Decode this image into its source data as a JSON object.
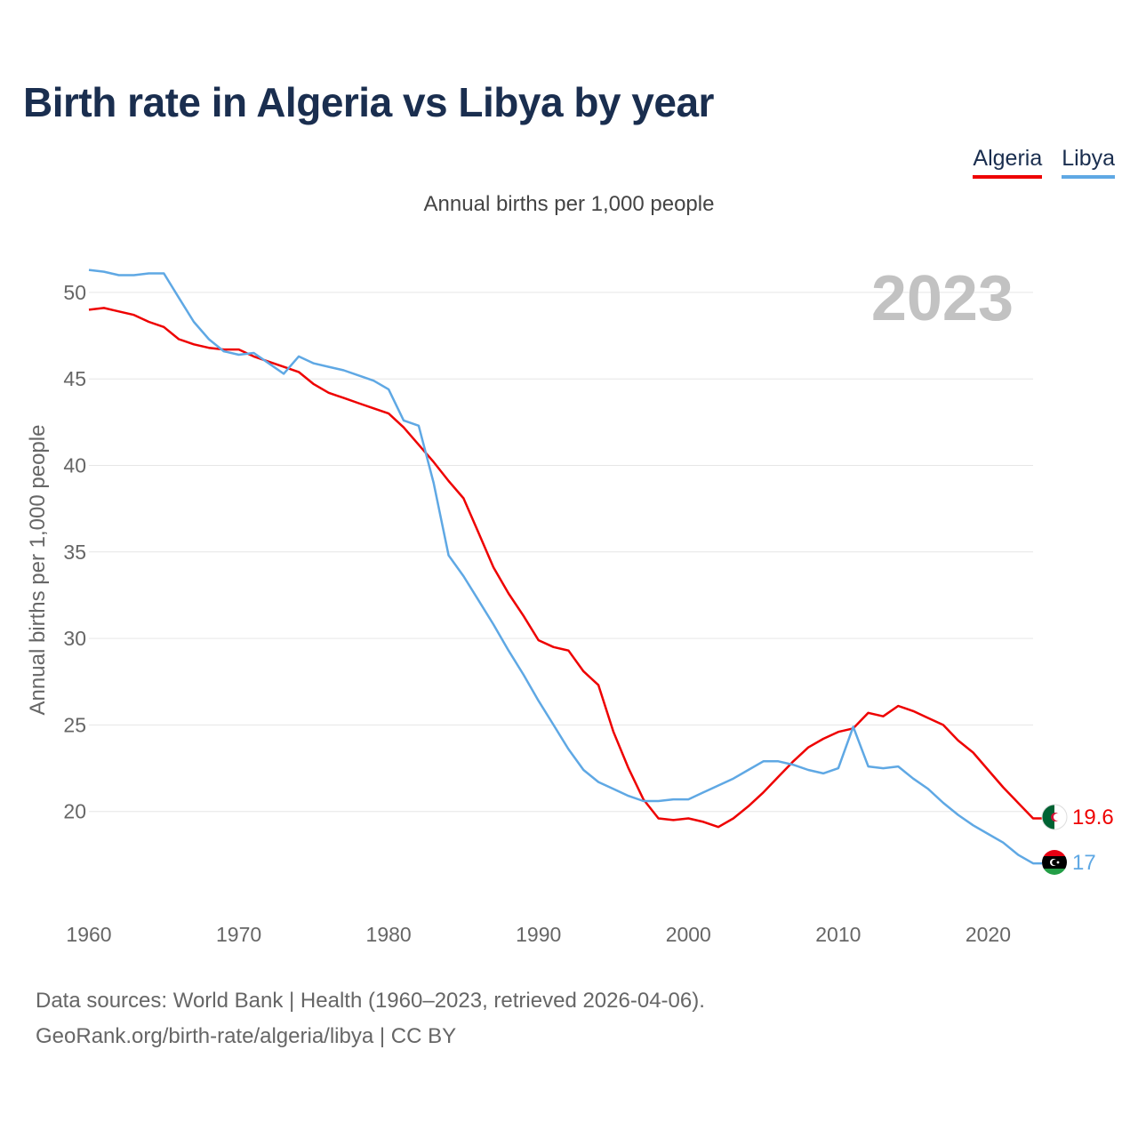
{
  "title": "Birth rate in Algeria vs Libya by year",
  "subtitle": "Annual births per 1,000 people",
  "legend": [
    {
      "label": "Algeria",
      "color": "#ee0000"
    },
    {
      "label": "Libya",
      "color": "#5fa8e4"
    }
  ],
  "footer": {
    "line1": "Data sources: World Bank | Health (1960–2023, retrieved 2026-04-06).",
    "line2": "GeoRank.org/birth-rate/algeria/libya | CC BY"
  },
  "chart_data": {
    "type": "line",
    "title": "Birth rate in Algeria vs Libya by year",
    "ylabel": "Annual births per 1,000 people",
    "xlabel": "",
    "year_overlay": "2023",
    "xlim": [
      1960,
      2023
    ],
    "ylim": [
      15,
      52
    ],
    "x_ticks": [
      1960,
      1970,
      1980,
      1990,
      2000,
      2010,
      2020
    ],
    "y_ticks": [
      20,
      25,
      30,
      35,
      40,
      45,
      50
    ],
    "grid": true,
    "x": [
      1960,
      1961,
      1962,
      1963,
      1964,
      1965,
      1966,
      1967,
      1968,
      1969,
      1970,
      1971,
      1972,
      1973,
      1974,
      1975,
      1976,
      1977,
      1978,
      1979,
      1980,
      1981,
      1982,
      1983,
      1984,
      1985,
      1986,
      1987,
      1988,
      1989,
      1990,
      1991,
      1992,
      1993,
      1994,
      1995,
      1996,
      1997,
      1998,
      1999,
      2000,
      2001,
      2002,
      2003,
      2004,
      2005,
      2006,
      2007,
      2008,
      2009,
      2010,
      2011,
      2012,
      2013,
      2014,
      2015,
      2016,
      2017,
      2018,
      2019,
      2020,
      2021,
      2022,
      2023
    ],
    "series": [
      {
        "name": "Algeria",
        "color": "#ee0000",
        "end_label": "19.6",
        "values": [
          49.0,
          49.1,
          48.9,
          48.7,
          48.3,
          48.0,
          47.3,
          47.0,
          46.8,
          46.7,
          46.7,
          46.3,
          46.0,
          45.7,
          45.4,
          44.7,
          44.2,
          43.9,
          43.6,
          43.3,
          43.0,
          42.2,
          41.2,
          40.2,
          39.1,
          38.1,
          36.1,
          34.1,
          32.6,
          31.3,
          29.9,
          29.5,
          29.3,
          28.1,
          27.3,
          24.6,
          22.5,
          20.7,
          19.6,
          19.5,
          19.6,
          19.4,
          19.1,
          19.6,
          20.3,
          21.1,
          22.0,
          22.9,
          23.7,
          24.2,
          24.6,
          24.8,
          25.7,
          25.5,
          26.1,
          25.8,
          25.4,
          25.0,
          24.1,
          23.4,
          22.4,
          21.4,
          20.5,
          19.6
        ]
      },
      {
        "name": "Libya",
        "color": "#5fa8e4",
        "end_label": "17",
        "values": [
          51.3,
          51.2,
          51.0,
          51.0,
          51.1,
          51.1,
          49.7,
          48.3,
          47.3,
          46.6,
          46.4,
          46.5,
          45.9,
          45.3,
          46.3,
          45.9,
          45.7,
          45.5,
          45.2,
          44.9,
          44.4,
          42.6,
          42.3,
          39.0,
          34.8,
          33.6,
          32.2,
          30.8,
          29.3,
          27.9,
          26.4,
          25.0,
          23.6,
          22.4,
          21.7,
          21.3,
          20.9,
          20.6,
          20.6,
          20.7,
          20.7,
          21.1,
          21.5,
          21.9,
          22.4,
          22.9,
          22.9,
          22.7,
          22.4,
          22.2,
          22.5,
          24.9,
          22.6,
          22.5,
          22.6,
          21.9,
          21.3,
          20.5,
          19.8,
          19.2,
          18.7,
          18.2,
          17.5,
          17.0
        ]
      }
    ]
  }
}
